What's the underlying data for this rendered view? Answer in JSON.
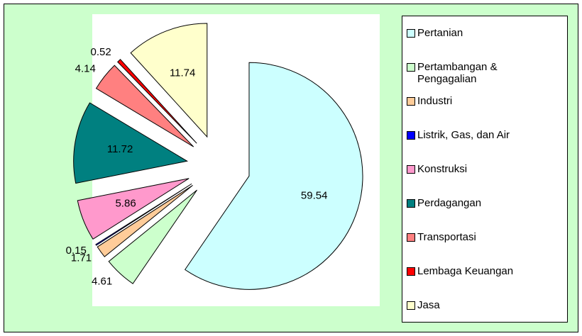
{
  "chart_data": {
    "type": "pie",
    "categories": [
      "Pertanian",
      "Pertambangan & Pengagalian",
      "Industri",
      "Listrik, Gas, dan Air",
      "Konstruksi",
      "Perdagangan",
      "Transportasi",
      "Lembaga Keuangan",
      "Jasa"
    ],
    "values": [
      59.54,
      4.61,
      1.71,
      0.15,
      5.86,
      11.72,
      4.14,
      0.52,
      11.74
    ],
    "colors": [
      "#ccffff",
      "#ccffcc",
      "#ffcc99",
      "#0000ff",
      "#ff99cc",
      "#008080",
      "#ff8080",
      "#ff0000",
      "#ffffcc"
    ],
    "legend": "right"
  }
}
